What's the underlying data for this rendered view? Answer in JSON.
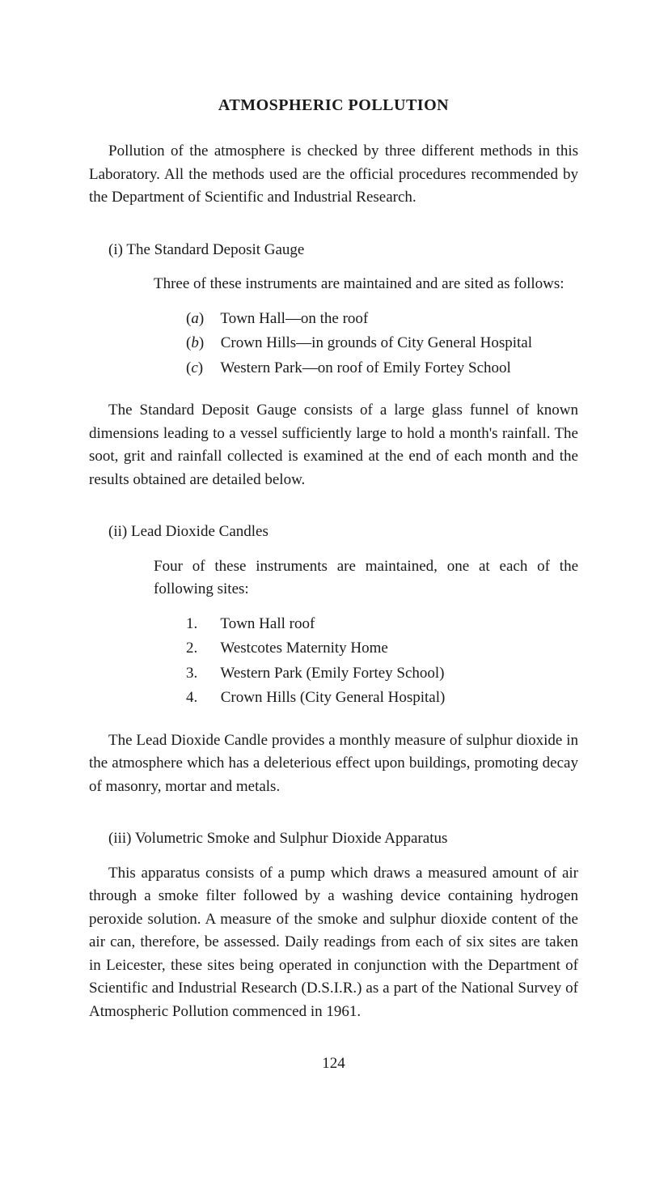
{
  "title": "ATMOSPHERIC POLLUTION",
  "intro": "Pollution of the atmosphere is checked by three different methods in this Laboratory. All the methods used are the official procedures recommended by the Department of Scientific and Industrial Research.",
  "section_i": {
    "heading": "(i)   The Standard Deposit Gauge",
    "sub_intro": "Three of these instruments are maintained and are sited as follows:",
    "items": [
      {
        "marker": "(a)",
        "text": "Town Hall—on the roof"
      },
      {
        "marker": "(b)",
        "text": "Crown Hills—in grounds of City General Hospital"
      },
      {
        "marker": "(c)",
        "text": "Western Park—on roof of Emily Fortey School"
      }
    ],
    "body": "The Standard Deposit Gauge consists of a large glass funnel of known dimensions leading to a vessel sufficiently large to hold a month's rainfall. The soot, grit and rainfall collected is examined at the end of each month and the results obtained are detailed below."
  },
  "section_ii": {
    "heading": "(ii)  Lead Dioxide Candles",
    "sub_intro": "Four of these instruments are maintained, one at each of the following sites:",
    "items": [
      {
        "num": "1.",
        "text": "Town Hall roof"
      },
      {
        "num": "2.",
        "text": "Westcotes Maternity Home"
      },
      {
        "num": "3.",
        "text": "Western Park (Emily Fortey School)"
      },
      {
        "num": "4.",
        "text": "Crown Hills (City General Hospital)"
      }
    ],
    "body": "The Lead Dioxide Candle provides a monthly measure of sulphur dioxide in the atmosphere which has a deleterious effect upon buildings, promoting decay of masonry, mortar and metals."
  },
  "section_iii": {
    "heading": "(iii) Volumetric Smoke and Sulphur Dioxide Apparatus",
    "body": "This apparatus consists of a pump which draws a measured amount of air through a smoke filter followed by a washing device containing hydrogen peroxide solution. A measure of the smoke and sulphur dioxide content of the air can, therefore, be assessed. Daily readings from each of six sites are taken in Leicester, these sites being operated in conjunction with the Department of Scientific and Industrial Research (D.S.I.R.) as a part of the National Survey of Atmospheric Pollution commenced in 1961."
  },
  "page_number": "124"
}
